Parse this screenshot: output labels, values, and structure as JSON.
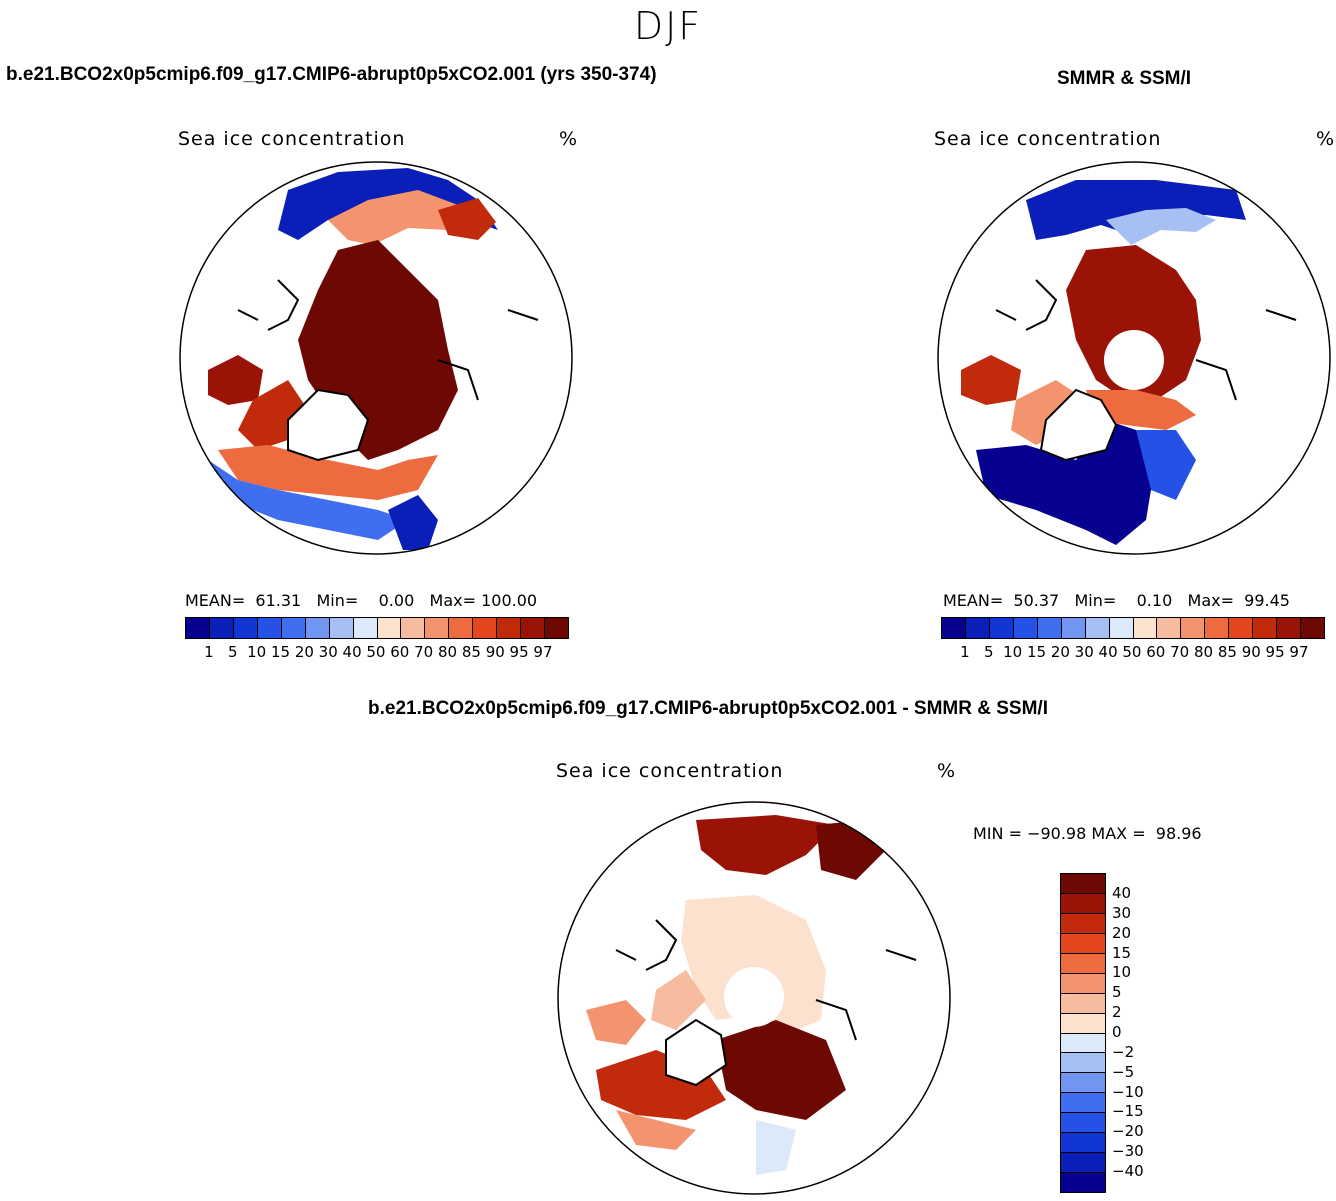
{
  "season": "DJF",
  "panels": {
    "model": {
      "case_title": "b.e21.BCO2x0p5cmip6.f09_g17.CMIP6-abrupt0p5xCO2.001 (yrs 350-374)",
      "variable": "Sea ice concentration",
      "units": "%",
      "mean_label": "MEAN=",
      "mean_value": "61.31",
      "min_label": "Min=",
      "min_value": "0.00",
      "max_label": "Max=",
      "max_value": "100.00"
    },
    "obs": {
      "case_title": "SMMR & SSM/I",
      "variable": "Sea ice concentration",
      "units": "%",
      "mean_label": "MEAN=",
      "mean_value": "50.37",
      "min_label": "Min=",
      "min_value": "0.10",
      "max_label": "Max=",
      "max_value": "99.45"
    },
    "diff": {
      "case_title": "b.e21.BCO2x0p5cmip6.f09_g17.CMIP6-abrupt0p5xCO2.001 - SMMR & SSM/I",
      "variable": "Sea ice concentration",
      "units": "%",
      "min_label": "MIN =",
      "min_value": "−90.98",
      "max_label": "MAX =",
      "max_value": "98.96"
    }
  },
  "colorbar_main": {
    "levels": [
      "1",
      "5",
      "10",
      "15",
      "20",
      "30",
      "40",
      "50",
      "60",
      "70",
      "80",
      "85",
      "90",
      "95",
      "97"
    ],
    "colors": [
      "#06028f",
      "#0a1fb8",
      "#1236d6",
      "#2452e6",
      "#3f6ff0",
      "#7096f2",
      "#a7c0f4",
      "#dbe9fa",
      "#fde1cf",
      "#f7bba0",
      "#f4946e",
      "#ee6a3f",
      "#e4471f",
      "#c22a0c",
      "#9b1306",
      "#6e0803"
    ]
  },
  "colorbar_diff": {
    "levels": [
      "40",
      "30",
      "20",
      "15",
      "10",
      "5",
      "2",
      "0",
      "−2",
      "−5",
      "−10",
      "−15",
      "−20",
      "−30",
      "−40"
    ],
    "colors": [
      "#6e0803",
      "#9b1306",
      "#c22a0c",
      "#e4471f",
      "#ee6a3f",
      "#f4946e",
      "#f7bba0",
      "#fde1cf",
      "#dbe9fa",
      "#a7c0f4",
      "#7096f2",
      "#3f6ff0",
      "#2452e6",
      "#1236d6",
      "#0a1fb8",
      "#06028f"
    ]
  }
}
